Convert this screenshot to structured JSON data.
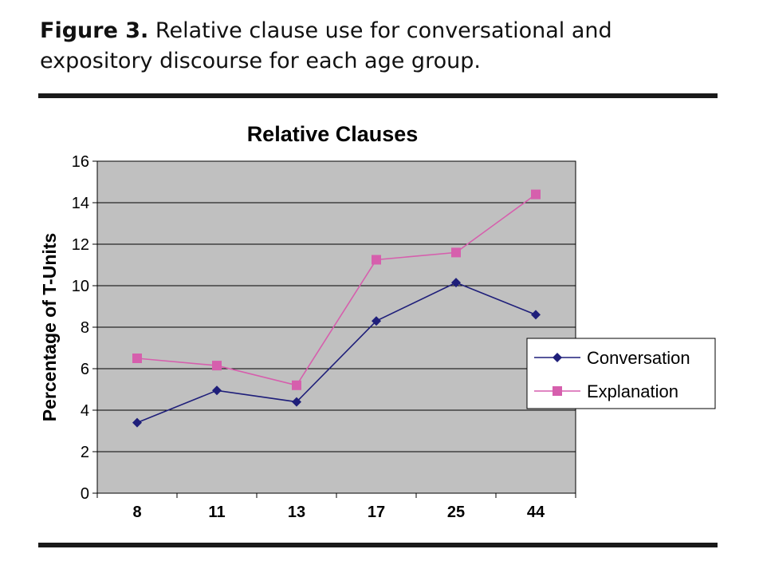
{
  "caption": {
    "label": "Figure 3.",
    "text": " Relative clause use for conversational and expository discourse for each age group."
  },
  "colors": {
    "plot_background": "#c0c0c0",
    "conversation": "#1f1f7a",
    "explanation": "#d65fad"
  },
  "chart_data": {
    "type": "line",
    "title": "Relative Clauses",
    "xlabel": "",
    "ylabel": "Percentage of T-Units",
    "categories": [
      "8",
      "11",
      "13",
      "17",
      "25",
      "44"
    ],
    "ylim": [
      0,
      16
    ],
    "yticks": [
      "0",
      "2",
      "4",
      "6",
      "8",
      "10",
      "12",
      "14",
      "16"
    ],
    "grid": "horizontal",
    "legend_position": "right",
    "series": [
      {
        "name": "Conversation",
        "marker": "diamond",
        "values": [
          3.4,
          4.95,
          4.4,
          8.3,
          10.15,
          8.6
        ]
      },
      {
        "name": "Explanation",
        "marker": "square",
        "values": [
          6.5,
          6.15,
          5.2,
          11.25,
          11.6,
          14.4
        ]
      }
    ]
  }
}
